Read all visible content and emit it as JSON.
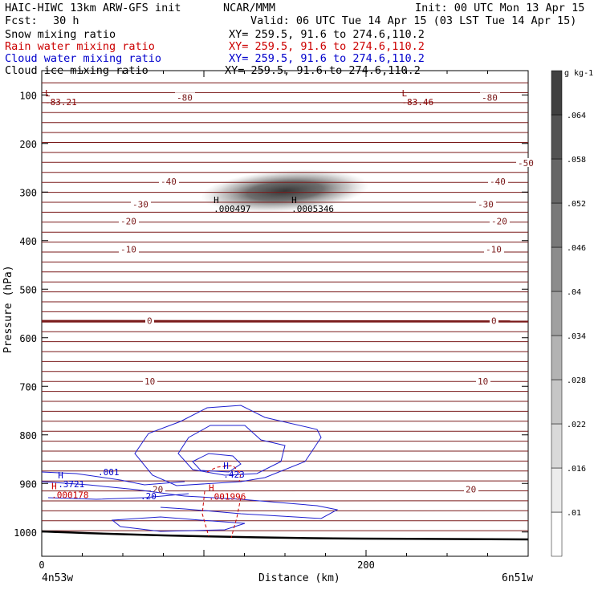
{
  "header": {
    "model": "HAIC-HIWC 13km ARW-GFS init",
    "org": "NCAR/MMM",
    "init": "Init: 00 UTC Mon 13 Apr 15",
    "fcst_label": "Fcst:",
    "fcst_value": "30 h",
    "valid": "Valid: 06 UTC Tue 14 Apr 15 (03 LST Tue 14 Apr 15)"
  },
  "legend": [
    {
      "name": "Snow mixing ratio",
      "xy": "XY= 259.5, 91.6 to 274.6,110.2",
      "color": "#000000"
    },
    {
      "name": "Rain water mixing ratio",
      "xy": "XY= 259.5, 91.6 to 274.6,110.2",
      "color": "#cc0000"
    },
    {
      "name": "Cloud water mixing ratio",
      "xy": "XY= 259.5, 91.6 to 274.6,110.2",
      "color": "#0000cc"
    },
    {
      "name": "Cloud ice mixing ratio",
      "xy": "XY= 259.5, 91.6 to 274.6,110.2",
      "color": "#000000"
    }
  ],
  "chart_data": {
    "type": "contour",
    "xlabel": "Distance (km)",
    "ylabel": "Pressure (hPa)",
    "xlim": [
      0,
      300
    ],
    "ylim": [
      1050,
      50
    ],
    "xticks": [
      0,
      200
    ],
    "xtick_labels": [
      "0",
      "200"
    ],
    "yticks": [
      100,
      200,
      300,
      400,
      500,
      600,
      700,
      800,
      900,
      1000
    ],
    "x_start_label": "4n53w",
    "x_end_label": "6n51w",
    "colorbar": {
      "unit": "g kg-1",
      "labels": [
        ".01",
        ".016",
        ".022",
        ".028",
        ".034",
        ".04",
        ".046",
        ".052",
        ".058",
        ".064"
      ]
    },
    "temperature_contours": [
      {
        "label": "-80",
        "p": 105
      },
      {
        "label": "-50",
        "p": 240
      },
      {
        "label": "-40",
        "p": 278
      },
      {
        "label": "-30",
        "p": 325
      },
      {
        "label": "-20",
        "p": 360
      },
      {
        "label": "-10",
        "p": 418
      },
      {
        "label": "0",
        "p": 565
      },
      {
        "label": "10",
        "p": 690
      },
      {
        "label": "20",
        "p": 912
      }
    ],
    "extrema_labels": [
      {
        "mark": "L",
        "value": "-83.21",
        "x": 2,
        "p": 103,
        "color": "#880000"
      },
      {
        "mark": "L",
        "value": "-83.46",
        "x": 222,
        "p": 103,
        "color": "#880000"
      },
      {
        "mark": "H",
        "value": ".000497",
        "x": 106,
        "p": 323,
        "color": "#000000"
      },
      {
        "mark": "H",
        "value": ".0005346",
        "x": 154,
        "p": 323,
        "color": "#000000"
      },
      {
        "mark": "H",
        "value": ".423",
        "x": 112,
        "p": 870,
        "color": "#0000cc"
      },
      {
        "mark": "H",
        "value": ".001996",
        "x": 103,
        "p": 915,
        "color": "#cc0000"
      },
      {
        "mark": "H",
        "value": ".3721",
        "x": 10,
        "p": 890,
        "color": "#0000cc"
      },
      {
        "mark": "H",
        "value": ".000178",
        "x": 6,
        "p": 912,
        "color": "#cc0000"
      }
    ],
    "cloud_water_labels": [
      ".001",
      ".20"
    ]
  }
}
